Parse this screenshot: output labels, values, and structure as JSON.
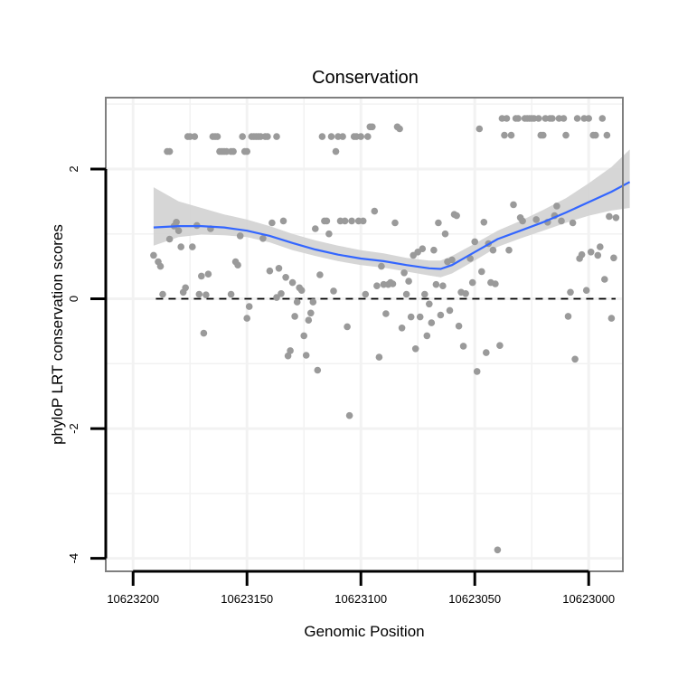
{
  "chart_data": {
    "type": "scatter",
    "title": "Conservation",
    "xlabel": "Genomic Position",
    "ylabel": "phyloP LRT conservation scores",
    "x_reversed": true,
    "xlim": [
      10623212,
      10622985
    ],
    "ylim": [
      -4.2,
      3.1
    ],
    "xticks": [
      10623200,
      10623150,
      10623100,
      10623050,
      10623000
    ],
    "xtick_labels": [
      "10623200",
      "10623150",
      "10623100",
      "10623050",
      "10623000"
    ],
    "yticks": [
      -4,
      -2,
      0,
      2
    ],
    "ytick_labels": [
      "-4",
      "-2",
      "0",
      "2"
    ],
    "reference_line": {
      "y": 0,
      "style": "dashed",
      "color": "#000000"
    },
    "colors": {
      "points": "#9a9a9a",
      "smooth_line": "#3366ff",
      "confidence_band": "#d2d2d2",
      "panel_border": "#7f7f7f",
      "grid": "#f2f2f2"
    },
    "series": [
      {
        "name": "scores",
        "points": [
          [
            10623191,
            0.67
          ],
          [
            10623189,
            0.57
          ],
          [
            10623188,
            0.5
          ],
          [
            10623187,
            0.07
          ],
          [
            10623185,
            2.27
          ],
          [
            10623184,
            2.27
          ],
          [
            10623184,
            0.92
          ],
          [
            10623182,
            1.12
          ],
          [
            10623181,
            1.18
          ],
          [
            10623180,
            1.05
          ],
          [
            10623179,
            0.8
          ],
          [
            10623178,
            0.1
          ],
          [
            10623177,
            0.17
          ],
          [
            10623176,
            2.5
          ],
          [
            10623175,
            2.5
          ],
          [
            10623174,
            0.8
          ],
          [
            10623173,
            2.5
          ],
          [
            10623172,
            1.13
          ],
          [
            10623171,
            0.07
          ],
          [
            10623170,
            0.35
          ],
          [
            10623169,
            -0.53
          ],
          [
            10623168,
            0.06
          ],
          [
            10623167,
            0.38
          ],
          [
            10623166,
            1.08
          ],
          [
            10623165,
            2.5
          ],
          [
            10623164,
            2.5
          ],
          [
            10623163,
            2.5
          ],
          [
            10623162,
            2.27
          ],
          [
            10623161,
            2.27
          ],
          [
            10623160,
            2.27
          ],
          [
            10623159,
            2.27
          ],
          [
            10623157,
            2.27
          ],
          [
            10623157,
            0.07
          ],
          [
            10623156,
            2.27
          ],
          [
            10623155,
            0.57
          ],
          [
            10623154,
            0.52
          ],
          [
            10623153,
            0.97
          ],
          [
            10623152,
            2.5
          ],
          [
            10623151,
            2.27
          ],
          [
            10623150,
            2.27
          ],
          [
            10623150,
            -0.3
          ],
          [
            10623149,
            -0.12
          ],
          [
            10623148,
            2.5
          ],
          [
            10623147,
            2.5
          ],
          [
            10623146,
            2.5
          ],
          [
            10623145,
            2.5
          ],
          [
            10623144,
            2.5
          ],
          [
            10623143,
            0.93
          ],
          [
            10623142,
            2.5
          ],
          [
            10623141,
            2.5
          ],
          [
            10623140,
            0.43
          ],
          [
            10623139,
            1.17
          ],
          [
            10623137,
            2.5
          ],
          [
            10623137,
            0.02
          ],
          [
            10623136,
            0.47
          ],
          [
            10623135,
            0.08
          ],
          [
            10623134,
            1.2
          ],
          [
            10623133,
            0.33
          ],
          [
            10623132,
            -0.88
          ],
          [
            10623131,
            -0.8
          ],
          [
            10623130,
            0.25
          ],
          [
            10623129,
            -0.27
          ],
          [
            10623128,
            -0.05
          ],
          [
            10623127,
            0.17
          ],
          [
            10623126,
            0.13
          ],
          [
            10623125,
            -0.57
          ],
          [
            10623124,
            -0.87
          ],
          [
            10623123,
            -0.33
          ],
          [
            10623122,
            -0.22
          ],
          [
            10623121,
            -0.05
          ],
          [
            10623120,
            1.08
          ],
          [
            10623119,
            -1.1
          ],
          [
            10623118,
            0.37
          ],
          [
            10623117,
            2.5
          ],
          [
            10623116,
            1.2
          ],
          [
            10623115,
            1.2
          ],
          [
            10623114,
            1.0
          ],
          [
            10623113,
            2.5
          ],
          [
            10623112,
            0.12
          ],
          [
            10623111,
            2.27
          ],
          [
            10623110,
            2.5
          ],
          [
            10623109,
            1.2
          ],
          [
            10623108,
            2.5
          ],
          [
            10623107,
            1.2
          ],
          [
            10623106,
            -0.43
          ],
          [
            10623105,
            -1.8
          ],
          [
            10623104,
            1.2
          ],
          [
            10623103,
            2.5
          ],
          [
            10623102,
            2.5
          ],
          [
            10623101,
            1.2
          ],
          [
            10623100,
            2.5
          ],
          [
            10623099,
            1.2
          ],
          [
            10623098,
            0.07
          ],
          [
            10623097,
            2.5
          ],
          [
            10623096,
            2.65
          ],
          [
            10623095,
            2.65
          ],
          [
            10623094,
            1.35
          ],
          [
            10623093,
            0.2
          ],
          [
            10623092,
            -0.9
          ],
          [
            10623091,
            0.5
          ],
          [
            10623090,
            0.22
          ],
          [
            10623089,
            -0.23
          ],
          [
            10623088,
            0.22
          ],
          [
            10623087,
            0.25
          ],
          [
            10623086,
            0.23
          ],
          [
            10623085,
            1.17
          ],
          [
            10623084,
            2.65
          ],
          [
            10623083,
            2.62
          ],
          [
            10623082,
            -0.45
          ],
          [
            10623081,
            0.4
          ],
          [
            10623080,
            0.07
          ],
          [
            10623079,
            0.27
          ],
          [
            10623078,
            -0.28
          ],
          [
            10623077,
            0.67
          ],
          [
            10623076,
            -0.77
          ],
          [
            10623075,
            0.72
          ],
          [
            10623074,
            -0.28
          ],
          [
            10623073,
            0.77
          ],
          [
            10623072,
            0.07
          ],
          [
            10623071,
            -0.57
          ],
          [
            10623070,
            -0.08
          ],
          [
            10623069,
            -0.37
          ],
          [
            10623068,
            0.75
          ],
          [
            10623067,
            0.22
          ],
          [
            10623066,
            1.17
          ],
          [
            10623065,
            -0.25
          ],
          [
            10623064,
            0.2
          ],
          [
            10623063,
            1.0
          ],
          [
            10623062,
            0.57
          ],
          [
            10623061,
            -0.18
          ],
          [
            10623060,
            0.6
          ],
          [
            10623059,
            1.3
          ],
          [
            10623058,
            1.28
          ],
          [
            10623057,
            -0.42
          ],
          [
            10623056,
            0.1
          ],
          [
            10623055,
            -0.73
          ],
          [
            10623054,
            0.08
          ],
          [
            10623052,
            0.62
          ],
          [
            10623051,
            0.25
          ],
          [
            10623050,
            0.88
          ],
          [
            10623049,
            -1.12
          ],
          [
            10623048,
            2.62
          ],
          [
            10623047,
            0.42
          ],
          [
            10623046,
            1.18
          ],
          [
            10623045,
            -0.83
          ],
          [
            10623044,
            0.85
          ],
          [
            10623043,
            0.25
          ],
          [
            10623042,
            0.75
          ],
          [
            10623041,
            0.23
          ],
          [
            10623040,
            -3.87
          ],
          [
            10623039,
            -0.72
          ],
          [
            10623038,
            2.78
          ],
          [
            10623037,
            2.52
          ],
          [
            10623036,
            2.78
          ],
          [
            10623035,
            0.75
          ],
          [
            10623034,
            2.52
          ],
          [
            10623033,
            1.45
          ],
          [
            10623032,
            2.78
          ],
          [
            10623031,
            2.78
          ],
          [
            10623030,
            1.25
          ],
          [
            10623029,
            1.2
          ],
          [
            10623028,
            2.78
          ],
          [
            10623027,
            2.78
          ],
          [
            10623026,
            2.78
          ],
          [
            10623025,
            2.78
          ],
          [
            10623024,
            2.78
          ],
          [
            10623023,
            1.22
          ],
          [
            10623022,
            2.78
          ],
          [
            10623021,
            2.52
          ],
          [
            10623020,
            2.52
          ],
          [
            10623019,
            2.78
          ],
          [
            10623018,
            1.18
          ],
          [
            10623017,
            2.78
          ],
          [
            10623016,
            2.78
          ],
          [
            10623015,
            1.28
          ],
          [
            10623014,
            1.43
          ],
          [
            10623013,
            2.78
          ],
          [
            10623012,
            1.2
          ],
          [
            10623011,
            2.78
          ],
          [
            10623010,
            2.52
          ],
          [
            10623009,
            -0.27
          ],
          [
            10623008,
            0.1
          ],
          [
            10623007,
            1.17
          ],
          [
            10623006,
            -0.93
          ],
          [
            10623005,
            2.78
          ],
          [
            10623004,
            0.62
          ],
          [
            10623003,
            0.68
          ],
          [
            10623002,
            2.78
          ],
          [
            10623001,
            0.13
          ],
          [
            10623000,
            2.78
          ],
          [
            10622999,
            0.72
          ],
          [
            10622998,
            2.52
          ],
          [
            10622997,
            2.52
          ],
          [
            10622996,
            0.67
          ],
          [
            10622995,
            0.8
          ],
          [
            10622994,
            2.78
          ],
          [
            10622993,
            0.3
          ],
          [
            10622992,
            2.52
          ],
          [
            10622991,
            1.27
          ],
          [
            10622990,
            -0.3
          ],
          [
            10622989,
            0.63
          ],
          [
            10622988,
            1.25
          ]
        ]
      }
    ],
    "smooth": {
      "method": "loess",
      "x": [
        10623191,
        10623180,
        10623170,
        10623160,
        10623150,
        10623140,
        10623130,
        10623120,
        10623110,
        10623100,
        10623090,
        10623080,
        10623070,
        10623065,
        10623060,
        10623050,
        10623040,
        10623030,
        10623020,
        10623010,
        10623000,
        10622990,
        10622982
      ],
      "y": [
        1.1,
        1.12,
        1.12,
        1.1,
        1.05,
        0.97,
        0.86,
        0.76,
        0.68,
        0.62,
        0.58,
        0.52,
        0.47,
        0.46,
        0.52,
        0.72,
        0.92,
        1.05,
        1.18,
        1.33,
        1.49,
        1.65,
        1.8
      ],
      "lower": [
        0.82,
        0.95,
        0.99,
        0.98,
        0.95,
        0.87,
        0.75,
        0.66,
        0.58,
        0.52,
        0.48,
        0.42,
        0.36,
        0.33,
        0.39,
        0.59,
        0.8,
        0.93,
        1.05,
        1.17,
        1.28,
        1.36,
        1.4
      ],
      "upper": [
        1.72,
        1.5,
        1.4,
        1.3,
        1.22,
        1.12,
        1.0,
        0.9,
        0.82,
        0.75,
        0.7,
        0.63,
        0.59,
        0.59,
        0.66,
        0.85,
        1.05,
        1.2,
        1.37,
        1.55,
        1.78,
        2.03,
        2.3
      ]
    }
  }
}
